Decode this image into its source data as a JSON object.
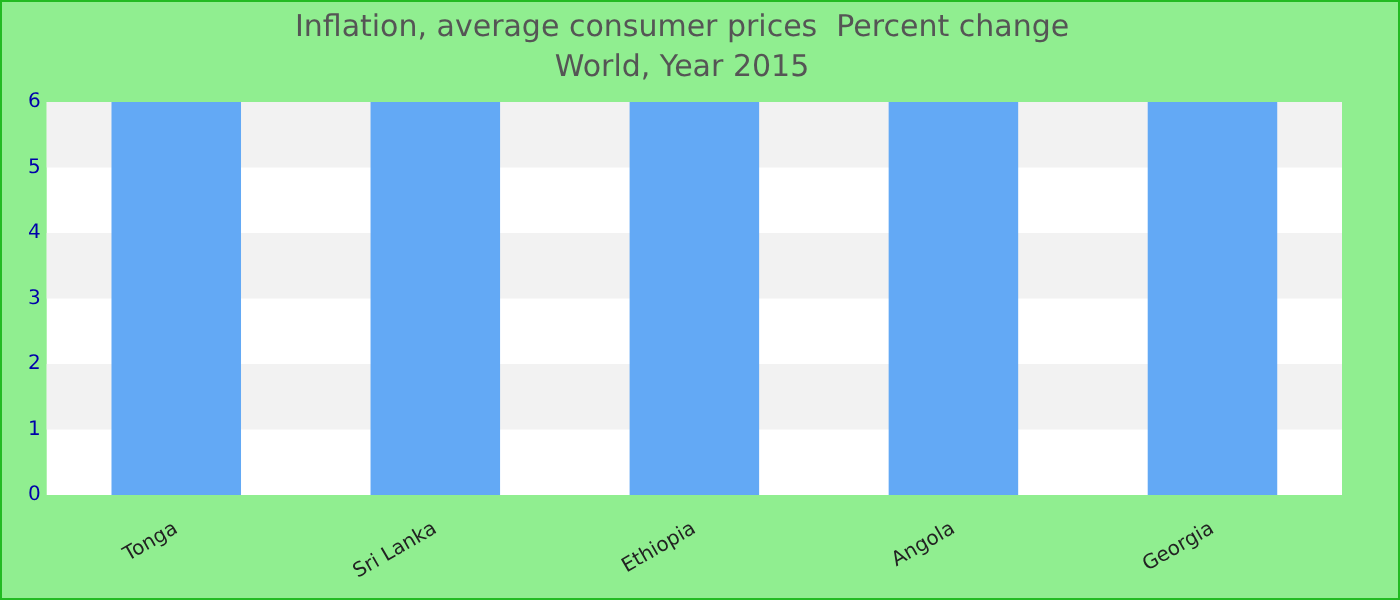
{
  "chart_data": {
    "type": "bar",
    "title": "Inflation, average consumer prices  Percent change",
    "subtitle": "World, Year 2015",
    "categories": [
      "Tonga",
      "Sri Lanka",
      "Ethiopia",
      "Angola",
      "Georgia"
    ],
    "values": [
      6,
      6,
      6,
      6,
      6
    ],
    "color": "#63a9f5",
    "ylim": [
      0,
      6
    ],
    "yticks": [
      0,
      1,
      2,
      3,
      4,
      5,
      6
    ],
    "legend": false
  }
}
